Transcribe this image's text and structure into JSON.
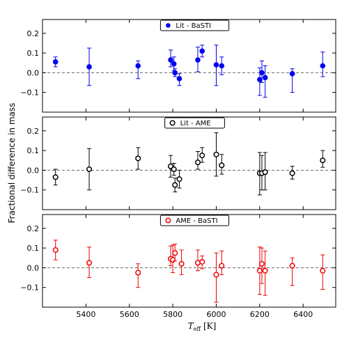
{
  "figure": {
    "ylabel": "Fractional difference in mass",
    "xlabel_main": "T",
    "xlabel_sub": "eff",
    "xlabel_unit": "[K]"
  },
  "chart_data": [
    {
      "type": "scatter",
      "legend_label": "Lit - BaSTI",
      "legend_position": "top-center",
      "color": "#0000ee",
      "marker": "filled-circle",
      "xlim": [
        5200,
        6550
      ],
      "ylim": [
        -0.2,
        0.27
      ],
      "yticks": [
        -0.1,
        0.0,
        0.1,
        0.2
      ],
      "ytick_labels": [
        "−0.1",
        "0.0",
        "0.1",
        "0.2"
      ],
      "x": [
        5260,
        5415,
        5640,
        5790,
        5805,
        5810,
        5830,
        5915,
        5935,
        6000,
        6025,
        6200,
        6210,
        6225,
        6350,
        6490
      ],
      "y": [
        0.055,
        0.03,
        0.035,
        0.065,
        0.045,
        0.0,
        -0.03,
        0.065,
        0.11,
        0.04,
        0.035,
        -0.035,
        0.0,
        -0.025,
        -0.005,
        0.035
      ],
      "err_lo": [
        0.025,
        0.095,
        0.065,
        0.035,
        0.035,
        0.02,
        0.035,
        0.06,
        0.03,
        0.105,
        0.045,
        0.08,
        0.05,
        0.1,
        0.095,
        0.055
      ],
      "err_hi": [
        0.025,
        0.095,
        0.025,
        0.05,
        0.035,
        0.02,
        0.025,
        0.065,
        0.03,
        0.1,
        0.045,
        0.06,
        0.06,
        0.06,
        0.025,
        0.07
      ]
    },
    {
      "type": "scatter",
      "legend_label": "Lit - AME",
      "legend_position": "top-center",
      "color": "#000000",
      "marker": "open-circle",
      "xlim": [
        5200,
        6550
      ],
      "ylim": [
        -0.2,
        0.27
      ],
      "yticks": [
        -0.1,
        0.0,
        0.1,
        0.2
      ],
      "ytick_labels": [
        "−0.1",
        "0.0",
        "0.1",
        "0.2"
      ],
      "x": [
        5260,
        5415,
        5640,
        5790,
        5805,
        5810,
        5830,
        5915,
        5935,
        6000,
        6025,
        6200,
        6210,
        6225,
        6350,
        6490
      ],
      "y": [
        -0.035,
        0.005,
        0.06,
        0.02,
        0.005,
        -0.075,
        -0.045,
        0.04,
        0.075,
        0.08,
        0.025,
        -0.015,
        -0.015,
        -0.01,
        -0.015,
        0.05
      ],
      "err_lo": [
        0.04,
        0.105,
        0.055,
        0.055,
        0.03,
        0.035,
        0.045,
        0.035,
        0.035,
        0.11,
        0.045,
        0.11,
        0.085,
        0.09,
        0.03,
        0.035
      ],
      "err_hi": [
        0.04,
        0.105,
        0.055,
        0.055,
        0.03,
        0.035,
        0.045,
        0.055,
        0.04,
        0.11,
        0.055,
        0.105,
        0.09,
        0.1,
        0.035,
        0.05
      ]
    },
    {
      "type": "scatter",
      "legend_label": "AME - BaSTI",
      "legend_position": "top-center",
      "color": "#ee0000",
      "marker": "open-circle",
      "xlim": [
        5200,
        6550
      ],
      "ylim": [
        -0.2,
        0.27
      ],
      "yticks": [
        -0.1,
        0.0,
        0.1,
        0.2
      ],
      "ytick_labels": [
        "−0.1",
        "0.0",
        "0.1",
        "0.2"
      ],
      "x": [
        5260,
        5415,
        5640,
        5790,
        5800,
        5810,
        5840,
        5915,
        5935,
        6000,
        6025,
        6200,
        6210,
        6225,
        6350,
        6490
      ],
      "y": [
        0.09,
        0.025,
        -0.025,
        0.045,
        0.04,
        0.075,
        0.02,
        0.025,
        0.03,
        -0.035,
        0.01,
        -0.015,
        0.02,
        -0.015,
        0.01,
        -0.015
      ],
      "err_lo": [
        0.05,
        0.075,
        0.075,
        0.035,
        0.065,
        0.04,
        0.055,
        0.04,
        0.035,
        0.14,
        0.045,
        0.12,
        0.1,
        0.125,
        0.1,
        0.095
      ],
      "err_hi": [
        0.05,
        0.08,
        0.045,
        0.065,
        0.075,
        0.045,
        0.07,
        0.065,
        0.03,
        0.11,
        0.075,
        0.12,
        0.08,
        0.1,
        0.04,
        0.08
      ]
    }
  ],
  "xaxis": {
    "ticks": [
      5400,
      5600,
      5800,
      6000,
      6200,
      6400
    ],
    "tick_labels": [
      "5400",
      "5600",
      "5800",
      "6000",
      "6200",
      "6400"
    ]
  }
}
